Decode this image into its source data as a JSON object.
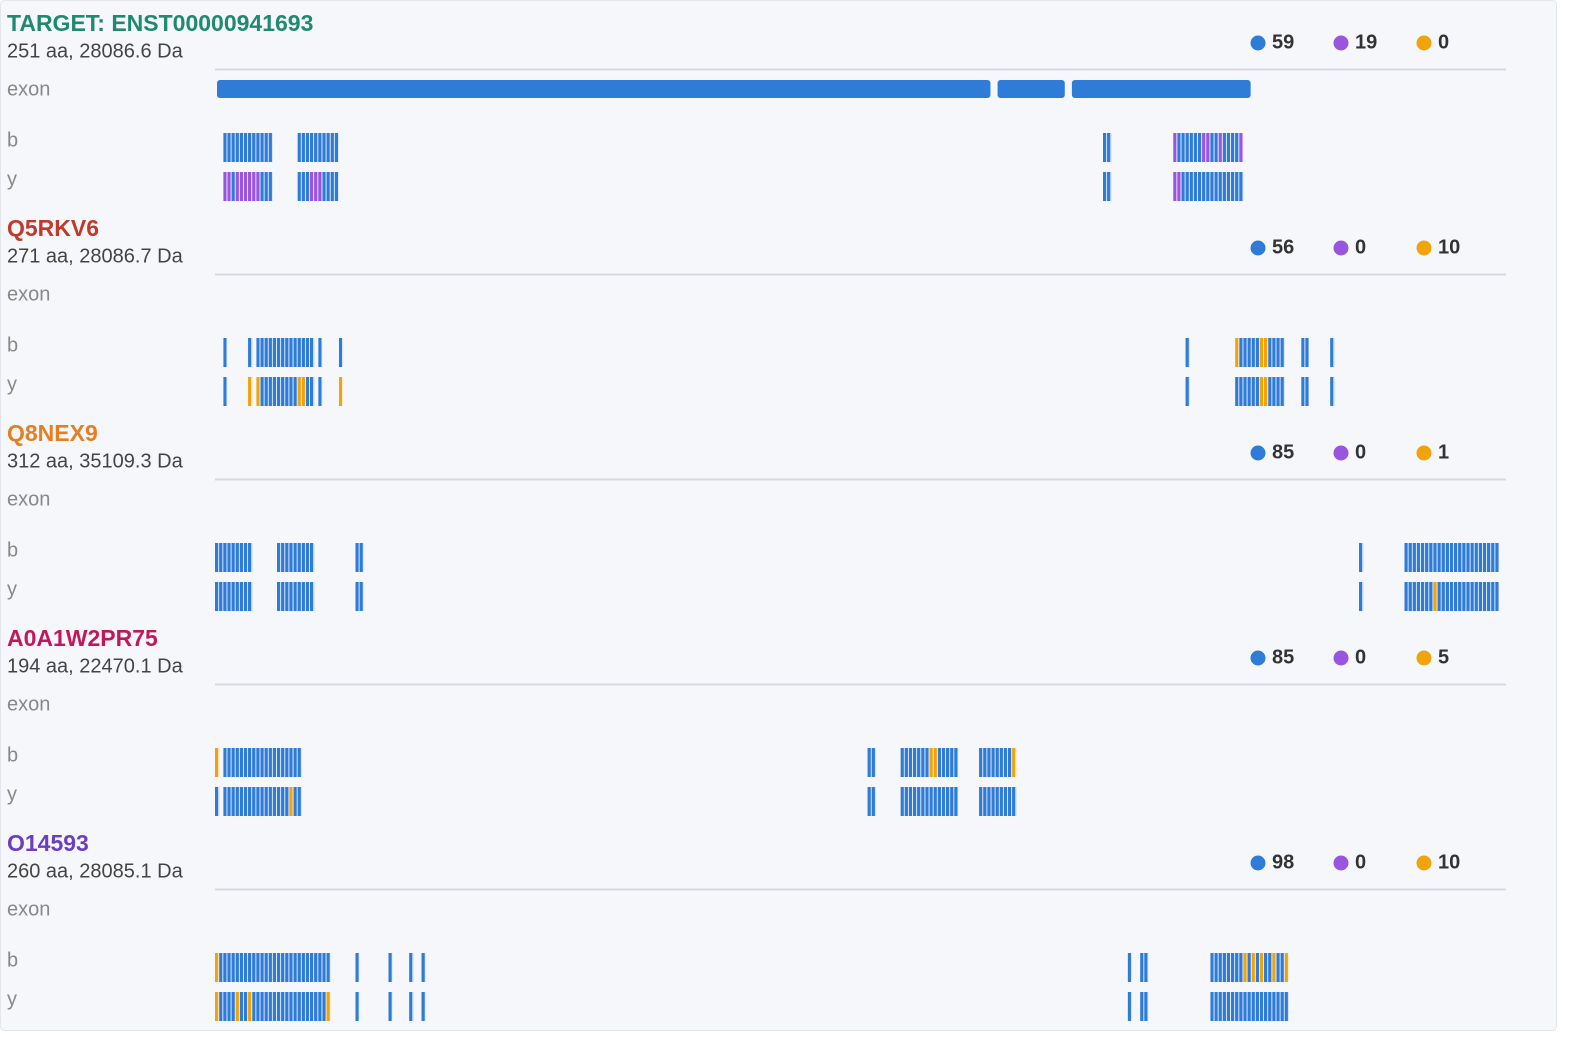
{
  "ion_colors": [
    "#2f7bd8",
    "#9a55e0",
    "#f0a30a"
  ],
  "proteins": [
    {
      "title": "TARGET: ENST00000941693",
      "color": "#1f8a70",
      "subtitle": "251 aa, 28086.6 Da",
      "counts": [
        59,
        19,
        0
      ],
      "exon_label": "exon",
      "exons": [
        [
          0,
          188
        ],
        [
          189,
          206
        ],
        [
          207,
          251
        ]
      ],
      "b_label": "b",
      "b": [
        [
          2,
          13,
          0
        ],
        [
          20,
          29,
          0
        ],
        [
          215,
          216,
          0
        ],
        [
          232,
          232,
          1
        ],
        [
          233,
          238,
          0
        ],
        [
          239,
          240,
          1
        ],
        [
          241,
          242,
          0
        ],
        [
          243,
          243,
          1
        ],
        [
          244,
          247,
          0
        ],
        [
          248,
          248,
          1
        ]
      ],
      "y_label": "y",
      "y": [
        [
          2,
          3,
          1
        ],
        [
          4,
          4,
          0
        ],
        [
          5,
          10,
          1
        ],
        [
          11,
          13,
          0
        ],
        [
          20,
          22,
          0
        ],
        [
          23,
          25,
          1
        ],
        [
          26,
          29,
          0
        ],
        [
          215,
          216,
          0
        ],
        [
          232,
          233,
          1
        ],
        [
          234,
          248,
          0
        ]
      ]
    },
    {
      "title": "Q5RKV6",
      "color": "#c0392b",
      "subtitle": "271 aa, 28086.7 Da",
      "counts": [
        56,
        0,
        10
      ],
      "exon_label": "exon",
      "exons": [],
      "b_label": "b",
      "b": [
        [
          2,
          2,
          0
        ],
        [
          8,
          8,
          0
        ],
        [
          10,
          23,
          0
        ],
        [
          25,
          25,
          0
        ],
        [
          30,
          30,
          0
        ],
        [
          235,
          235,
          0
        ],
        [
          247,
          247,
          2
        ],
        [
          248,
          252,
          0
        ],
        [
          253,
          254,
          2
        ],
        [
          255,
          258,
          0
        ],
        [
          263,
          264,
          0
        ],
        [
          270,
          270,
          0
        ]
      ],
      "y_label": "y",
      "y": [
        [
          2,
          2,
          0
        ],
        [
          8,
          8,
          2
        ],
        [
          10,
          10,
          2
        ],
        [
          11,
          19,
          0
        ],
        [
          20,
          21,
          2
        ],
        [
          22,
          23,
          0
        ],
        [
          25,
          25,
          0
        ],
        [
          30,
          30,
          2
        ],
        [
          235,
          235,
          0
        ],
        [
          247,
          252,
          0
        ],
        [
          253,
          254,
          2
        ],
        [
          255,
          258,
          0
        ],
        [
          263,
          264,
          0
        ],
        [
          270,
          270,
          0
        ]
      ]
    },
    {
      "title": "Q8NEX9",
      "color": "#e67e22",
      "subtitle": "312 aa, 35109.3 Da",
      "counts": [
        85,
        0,
        1
      ],
      "exon_label": "exon",
      "exons": [],
      "b_label": "b",
      "b": [
        [
          0,
          8,
          0
        ],
        [
          15,
          23,
          0
        ],
        [
          34,
          35,
          0
        ],
        [
          277,
          277,
          0
        ],
        [
          288,
          310,
          0
        ]
      ],
      "y_label": "y",
      "y": [
        [
          0,
          8,
          0
        ],
        [
          15,
          23,
          0
        ],
        [
          34,
          35,
          0
        ],
        [
          277,
          277,
          0
        ],
        [
          288,
          294,
          0
        ],
        [
          295,
          295,
          2
        ],
        [
          296,
          310,
          0
        ]
      ]
    },
    {
      "title": "A0A1W2PR75",
      "color": "#c2185b",
      "subtitle": "194 aa, 22470.1 Da",
      "counts": [
        85,
        0,
        5
      ],
      "exon_label": "exon",
      "exons": [],
      "b_label": "b",
      "b": [
        [
          0,
          0,
          2
        ],
        [
          2,
          20,
          0
        ],
        [
          158,
          159,
          0
        ],
        [
          166,
          172,
          0
        ],
        [
          173,
          174,
          2
        ],
        [
          175,
          179,
          0
        ],
        [
          185,
          192,
          0
        ],
        [
          193,
          193,
          2
        ]
      ],
      "y_label": "y",
      "y": [
        [
          0,
          0,
          0
        ],
        [
          2,
          17,
          0
        ],
        [
          18,
          18,
          2
        ],
        [
          19,
          20,
          0
        ],
        [
          158,
          159,
          0
        ],
        [
          166,
          179,
          0
        ],
        [
          185,
          193,
          0
        ]
      ]
    },
    {
      "title": "O14593",
      "color": "#6a3fc1",
      "subtitle": "260 aa, 28085.1 Da",
      "counts": [
        98,
        0,
        10
      ],
      "exon_label": "exon",
      "exons": [],
      "b_label": "b",
      "b": [
        [
          0,
          0,
          2
        ],
        [
          1,
          27,
          0
        ],
        [
          34,
          34,
          0
        ],
        [
          42,
          42,
          0
        ],
        [
          47,
          47,
          0
        ],
        [
          50,
          50,
          0
        ],
        [
          221,
          221,
          0
        ],
        [
          224,
          225,
          0
        ],
        [
          241,
          248,
          0
        ],
        [
          249,
          249,
          2
        ],
        [
          250,
          250,
          0
        ],
        [
          251,
          251,
          2
        ],
        [
          252,
          252,
          0
        ],
        [
          253,
          253,
          2
        ],
        [
          254,
          255,
          0
        ],
        [
          256,
          256,
          2
        ],
        [
          257,
          258,
          0
        ],
        [
          259,
          259,
          2
        ]
      ],
      "y_label": "y",
      "y": [
        [
          0,
          0,
          2
        ],
        [
          1,
          4,
          0
        ],
        [
          5,
          5,
          2
        ],
        [
          6,
          7,
          0
        ],
        [
          8,
          8,
          2
        ],
        [
          9,
          26,
          0
        ],
        [
          27,
          27,
          2
        ],
        [
          34,
          34,
          0
        ],
        [
          42,
          42,
          0
        ],
        [
          47,
          47,
          0
        ],
        [
          50,
          50,
          0
        ],
        [
          221,
          221,
          0
        ],
        [
          224,
          225,
          0
        ],
        [
          241,
          259,
          0
        ]
      ]
    }
  ]
}
